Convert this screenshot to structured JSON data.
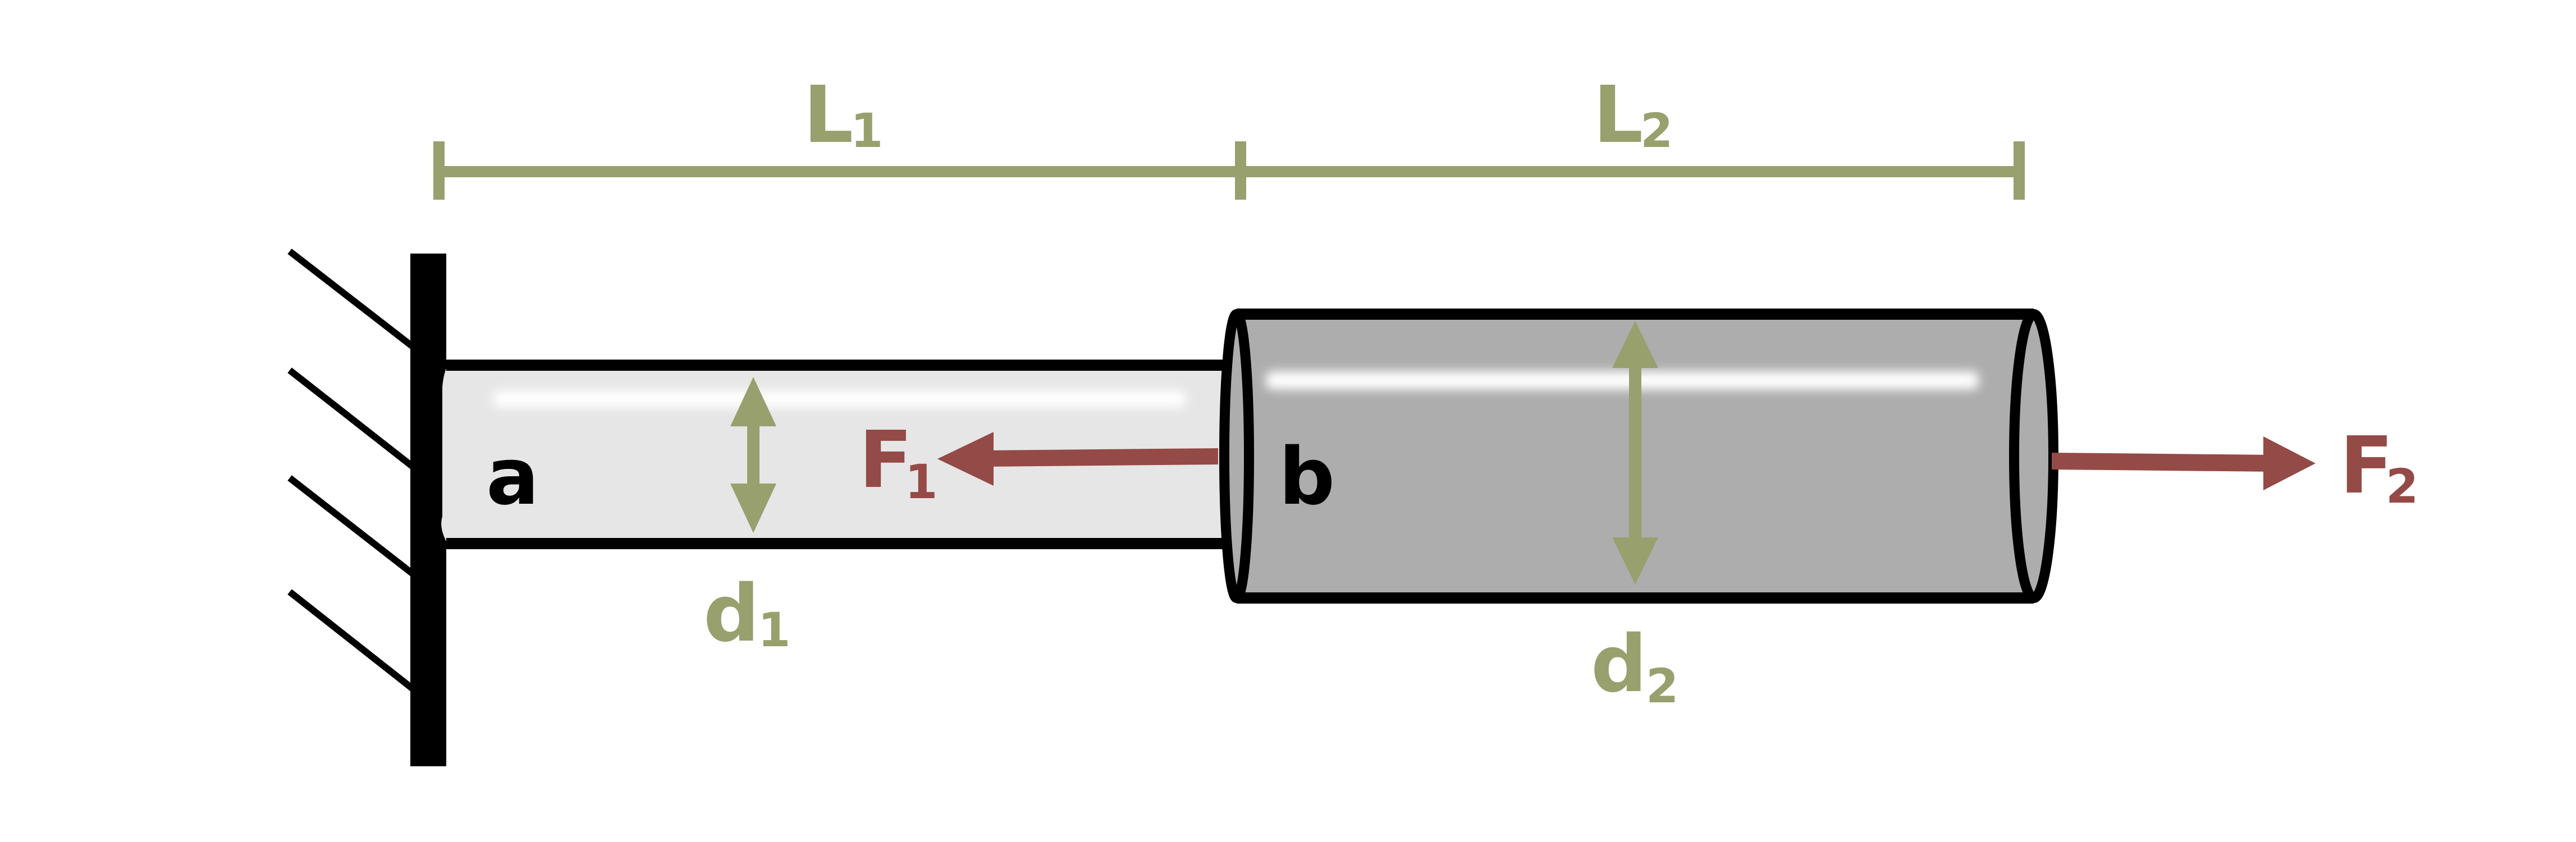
{
  "labels": {
    "segment_a": "a",
    "segment_b": "b",
    "length_1": {
      "main": "L",
      "sub": "1"
    },
    "length_2": {
      "main": "L",
      "sub": "2"
    },
    "diameter_1": {
      "main": "d",
      "sub": "1"
    },
    "diameter_2": {
      "main": "d",
      "sub": "2"
    },
    "force_1": {
      "main": "F",
      "sub": "1"
    },
    "force_2": {
      "main": "F",
      "sub": "2"
    }
  },
  "colors": {
    "dimension": "#98a06e",
    "force": "#944a46",
    "outline": "#000000",
    "rod_a_fill": "#e6e6e6",
    "rod_b_fill": "#adadad",
    "highlight": "#ffffff",
    "label_dark": "#000000"
  }
}
